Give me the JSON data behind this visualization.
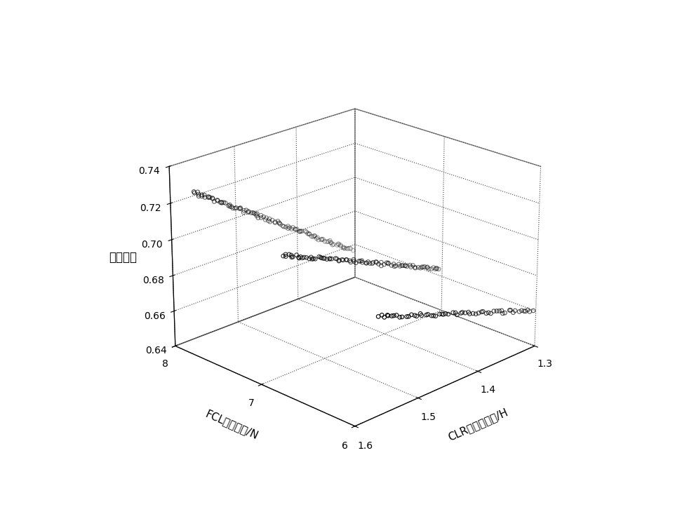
{
  "xlabel": "CLR电感值总和/H",
  "ylabel": "FCL配置个数/N",
  "zlabel": "限流效果",
  "xlim": [
    1.3,
    1.6
  ],
  "ylim": [
    6,
    8
  ],
  "zlim": [
    0.64,
    0.74
  ],
  "xticks": [
    1.3,
    1.4,
    1.5,
    1.6
  ],
  "yticks": [
    6,
    7,
    8
  ],
  "zticks": [
    0.64,
    0.66,
    0.68,
    0.7,
    0.72,
    0.74
  ],
  "background_color": "#ffffff",
  "marker_color": "black",
  "marker_size": 16,
  "linewidth": 0.8,
  "elev": 22,
  "azim": -135,
  "stripe_params": [
    [
      6,
      1.305,
      1.565,
      0.661,
      0.693,
      60
    ],
    [
      7,
      1.305,
      1.565,
      0.665,
      0.706,
      90
    ],
    [
      8,
      1.305,
      1.565,
      0.657,
      0.722,
      110
    ]
  ]
}
